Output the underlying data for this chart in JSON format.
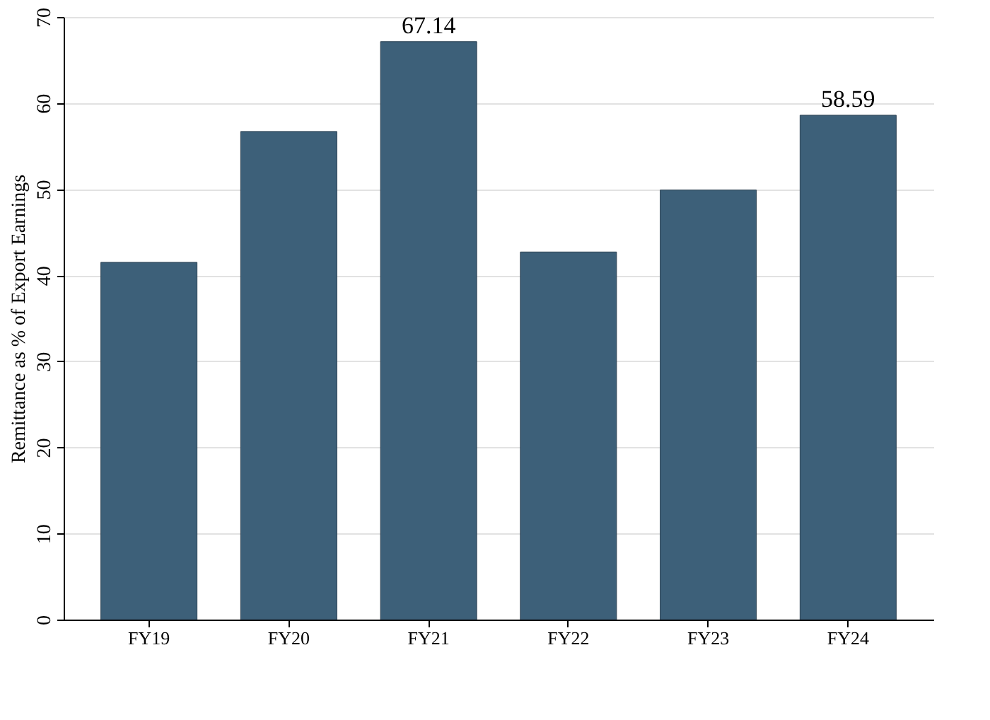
{
  "chart_data": {
    "type": "bar",
    "ylabel": "Remittance as % of Export Earnings",
    "categories": [
      "FY19",
      "FY20",
      "FY21",
      "FY22",
      "FY23",
      "FY24"
    ],
    "values": [
      41.5,
      56.7,
      67.14,
      42.7,
      49.9,
      58.59
    ],
    "value_labels": [
      null,
      null,
      "67.14",
      null,
      null,
      "58.59"
    ],
    "color": "#3d6079",
    "ylim": [
      0,
      70
    ],
    "yticks": [
      0,
      10,
      20,
      30,
      40,
      50,
      60,
      70
    ],
    "grid": "y"
  }
}
